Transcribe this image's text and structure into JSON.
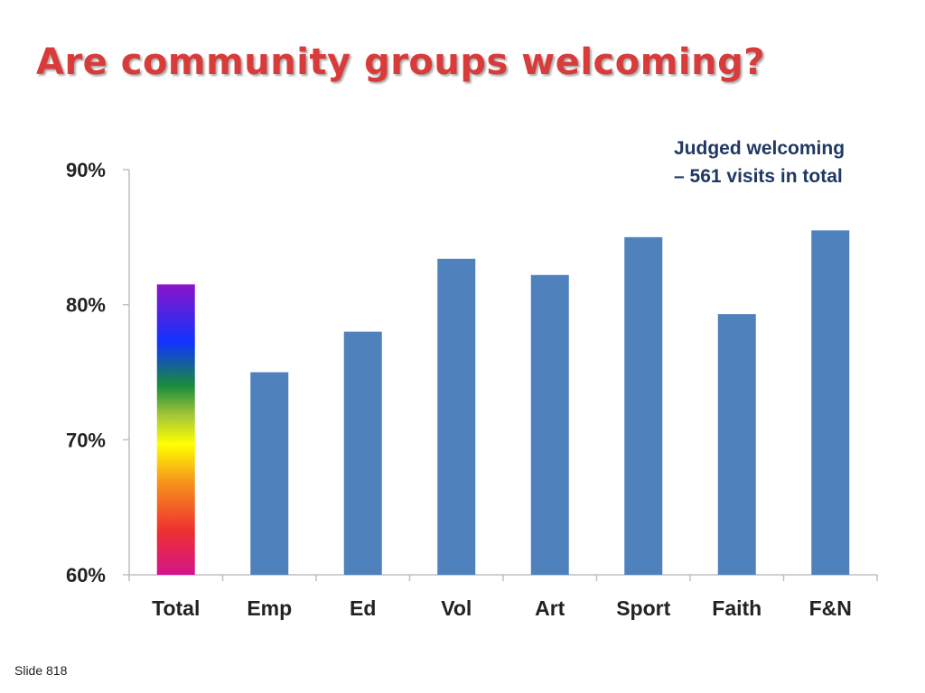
{
  "slide": {
    "title": "Are community groups welcoming?",
    "number_label": "Slide 818"
  },
  "annotation": {
    "line1": "Judged welcoming",
    "line2": "– 561 visits in total"
  },
  "colors": {
    "title": "#d93a3a",
    "annotation": "#1f3864",
    "bar": "#4f81bd",
    "axis": "#bfbfbf"
  },
  "chart_data": {
    "type": "bar",
    "title": "",
    "xlabel": "",
    "ylabel": "",
    "categories": [
      "Total",
      "Emp",
      "Ed",
      "Vol",
      "Art",
      "Sport",
      "Faith",
      "F&N"
    ],
    "values": [
      81.5,
      75.0,
      78.0,
      83.4,
      82.2,
      85.0,
      79.3,
      85.5
    ],
    "ylim": [
      60,
      90
    ],
    "yticks": [
      90,
      80,
      70,
      60
    ],
    "ytick_labels": [
      "90%",
      "80%",
      "70%",
      "60%"
    ],
    "grid": false,
    "legend": "none",
    "highlight": {
      "category": "Total",
      "fill": "rainbow-gradient"
    }
  }
}
